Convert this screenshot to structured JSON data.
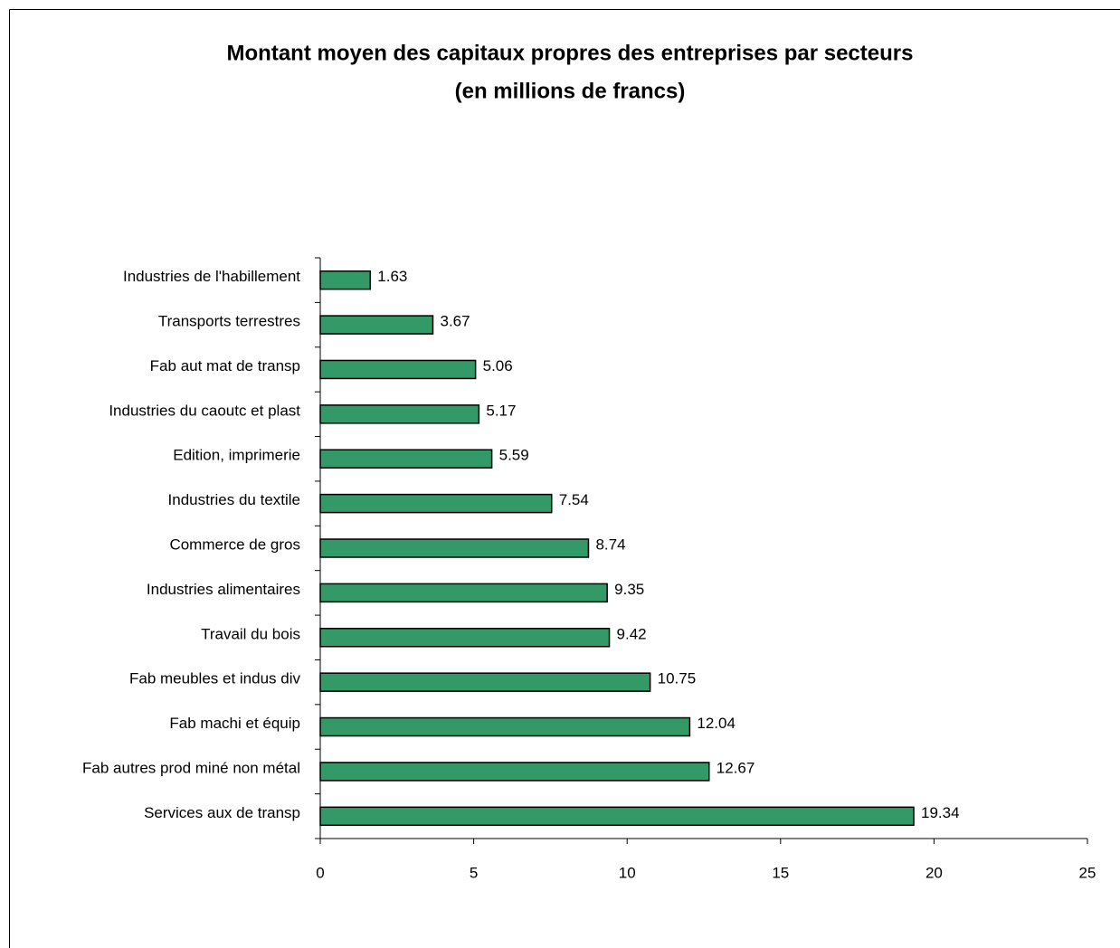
{
  "chart_data": {
    "type": "barh",
    "title": "Montant moyen des capitaux propres des entreprises par secteurs",
    "subtitle": "(en millions de francs)",
    "categories": [
      "Industries de l'habillement",
      "Transports terrestres",
      "Fab aut mat de transp",
      "Industries du caoutc et plast",
      "Edition, imprimerie",
      "Industries du textile",
      "Commerce de gros",
      "Industries alimentaires",
      "Travail du bois",
      "Fab meubles et indus div",
      "Fab machi et équip",
      "Fab autres prod miné non métal",
      "Services aux de transp"
    ],
    "values": [
      1.63,
      3.67,
      5.06,
      5.17,
      5.59,
      7.54,
      8.74,
      9.35,
      9.42,
      10.75,
      12.04,
      12.67,
      19.34
    ],
    "color": "#339966",
    "xlim": [
      0,
      25
    ],
    "xticks": [
      0,
      5,
      10,
      15,
      20,
      25
    ]
  }
}
